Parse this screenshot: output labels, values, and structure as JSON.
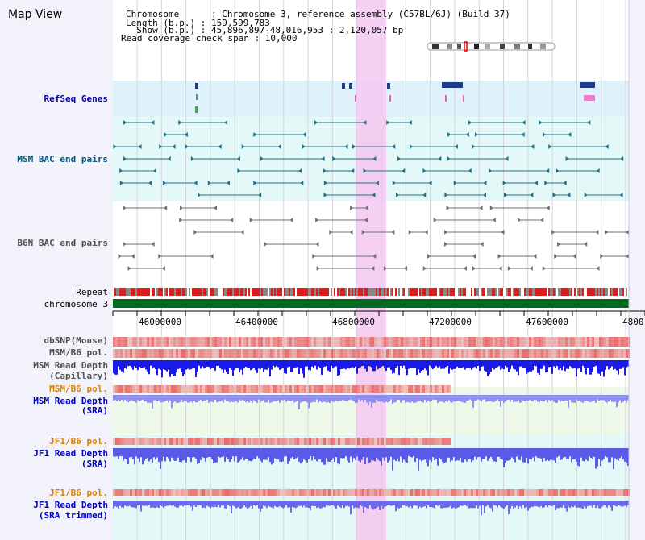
{
  "title": "Map View",
  "info": {
    "chromosome_line": "Chromosome      : Chromosome 3, reference assembly (C57BL/6J) (Build 37)",
    "length_line": "Length (b.p.) : 159,599,783",
    "show_line": "  Show (b.p.) : 45,896,897-48,016,953 : 2,120,057 bp",
    "coverage_line": "Read coverage check span : 10,000"
  },
  "tracks": {
    "refseq": "RefSeq Genes",
    "msm_bac": "MSM BAC end pairs",
    "b6n_bac": "B6N BAC end pairs",
    "repeat": "Repeat",
    "chromosome": "chromosome 3",
    "dbsnp": "dbSNP(Mouse)",
    "msm_b6_pol_1": "MSM/B6 pol.",
    "msm_read_cap_1": "MSM Read Depth",
    "msm_read_cap_2": "(Capillary)",
    "msm_b6_pol_2": "MSM/B6 pol.",
    "msm_read_sra_1": "MSM Read Depth",
    "msm_read_sra_2": "(SRA)",
    "jf1_b6_pol_1": "JF1/B6 pol.",
    "jf1_read_sra_1": "JF1 Read Depth",
    "jf1_read_sra_2": "(SRA)",
    "jf1_b6_pol_2": "JF1/B6 pol.",
    "jf1_trim_1": "JF1 Read Depth",
    "jf1_trim_2": "(SRA trimmed)"
  },
  "axis_ticks": [
    "46000000",
    "46400000",
    "46800000",
    "47200000",
    "47600000",
    "4800"
  ],
  "colors": {
    "refseq_label": "#0000a0",
    "msm_label": "#005a80",
    "b6n_label": "#505050",
    "msm_depth_label": "#0000c0",
    "jf1_pol_label": "#e08000",
    "jf1_depth_label": "#0000c0",
    "highlight": "#f4c8f0"
  }
}
